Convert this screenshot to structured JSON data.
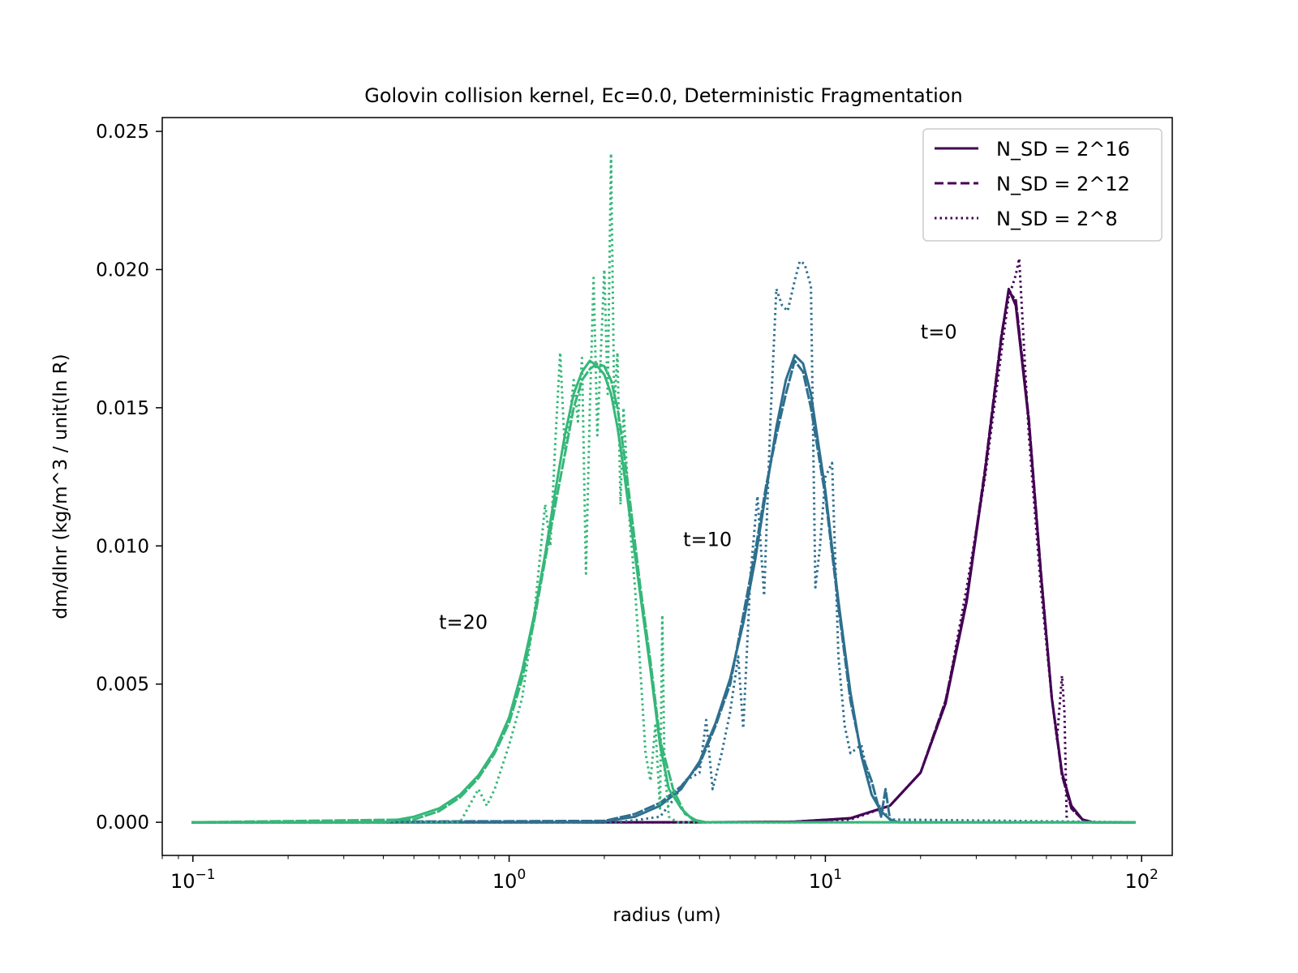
{
  "chart_data": {
    "type": "line",
    "title": "Golovin collision kernel, Ec=0.0, Deterministic Fragmentation",
    "xlabel": "radius (um)",
    "ylabel": "dm/dlnr (kg/m^3 / unit(ln R)",
    "xscale": "log",
    "xlim": [
      0.08,
      125
    ],
    "ylim": [
      -0.0012,
      0.0255
    ],
    "x_ticks": [
      {
        "value": 0.1,
        "base": "10",
        "exp": "−1"
      },
      {
        "value": 1,
        "base": "10",
        "exp": "0"
      },
      {
        "value": 10,
        "base": "10",
        "exp": "1"
      },
      {
        "value": 100,
        "base": "10",
        "exp": "2"
      }
    ],
    "y_ticks": [
      0.0,
      0.005,
      0.01,
      0.015,
      0.02,
      0.025
    ],
    "y_tick_labels": [
      "0.000",
      "0.005",
      "0.010",
      "0.015",
      "0.020",
      "0.025"
    ],
    "grid": false,
    "legend": {
      "position": "top-right",
      "entries": [
        {
          "label": "N_SD = 2^16",
          "dash": "solid"
        },
        {
          "label": "N_SD = 2^12",
          "dash": "dashed"
        },
        {
          "label": "N_SD = 2^8",
          "dash": "dotted"
        }
      ]
    },
    "legend_color": "#440154",
    "annotations": [
      {
        "text": "t=0",
        "x": 20.0,
        "y": 0.0175
      },
      {
        "text": "t=10",
        "x": 3.55,
        "y": 0.01
      },
      {
        "text": "t=20",
        "x": 0.6,
        "y": 0.007
      }
    ],
    "series": [
      {
        "time": "t=0",
        "variant": "N_SD = 2^16",
        "dash": "solid",
        "color": "#440154",
        "x": [
          0.1,
          4,
          8,
          12,
          16,
          20,
          24,
          28,
          32,
          36,
          38,
          40,
          44,
          48,
          52,
          56,
          60,
          65,
          70,
          95
        ],
        "y": [
          0.0,
          0.0,
          2e-05,
          0.00015,
          0.0006,
          0.0018,
          0.0043,
          0.008,
          0.0127,
          0.0175,
          0.0193,
          0.0187,
          0.0145,
          0.009,
          0.0045,
          0.0018,
          0.0006,
          0.0001,
          0.0,
          0.0
        ]
      },
      {
        "time": "t=0",
        "variant": "N_SD = 2^12",
        "dash": "dashed",
        "color": "#440154",
        "x": [
          0.1,
          4,
          8,
          12,
          16,
          20,
          24,
          28,
          32,
          36,
          38,
          40,
          44,
          48,
          52,
          56,
          60,
          65,
          70,
          95
        ],
        "y": [
          0.0,
          0.0,
          2e-05,
          0.00014,
          0.0006,
          0.0018,
          0.0044,
          0.0081,
          0.0128,
          0.0176,
          0.0192,
          0.0189,
          0.0146,
          0.0091,
          0.0045,
          0.0017,
          0.0005,
          0.0001,
          0.0,
          0.0
        ]
      },
      {
        "time": "t=0",
        "variant": "N_SD = 2^8",
        "dash": "dotted",
        "color": "#440154",
        "x": [
          0.1,
          8,
          12,
          16,
          20,
          24,
          26,
          28,
          32,
          36,
          38,
          40,
          41,
          44,
          48,
          52,
          54,
          56,
          57,
          58,
          60,
          95
        ],
        "y": [
          0.0,
          0.0,
          0.0001,
          0.0006,
          0.0018,
          0.0043,
          0.0065,
          0.0085,
          0.0125,
          0.017,
          0.019,
          0.0198,
          0.0204,
          0.014,
          0.0085,
          0.0045,
          0.003,
          0.0053,
          0.004,
          0.0,
          0.0,
          0.0
        ]
      },
      {
        "time": "t=10",
        "variant": "N_SD = 2^16",
        "dash": "solid",
        "color": "#2e6f8e",
        "x": [
          0.1,
          1.5,
          2.0,
          2.5,
          3.0,
          3.5,
          4.0,
          4.5,
          5.0,
          5.5,
          6.0,
          6.5,
          7.0,
          7.5,
          8.0,
          8.5,
          9.0,
          10.0,
          11.0,
          12.0,
          13.0,
          14.0,
          15.0,
          16.0,
          17.0,
          18.0,
          95
        ],
        "y": [
          0.0,
          0.0,
          3e-05,
          0.0002,
          0.0006,
          0.0012,
          0.0022,
          0.0036,
          0.0052,
          0.0072,
          0.0095,
          0.012,
          0.0143,
          0.016,
          0.0169,
          0.0166,
          0.0155,
          0.012,
          0.008,
          0.0047,
          0.0024,
          0.001,
          0.0004,
          0.0001,
          0.0,
          0.0,
          0.0
        ]
      },
      {
        "time": "t=10",
        "variant": "N_SD = 2^12",
        "dash": "dashed",
        "color": "#2e6f8e",
        "x": [
          0.1,
          2.0,
          2.5,
          3.0,
          3.5,
          4.0,
          4.5,
          5.0,
          5.5,
          6.0,
          6.5,
          7.0,
          7.5,
          8.0,
          8.5,
          9.0,
          10.0,
          11.0,
          12.0,
          13.0,
          14.0,
          15.0,
          15.5,
          16.0,
          17.0,
          95
        ],
        "y": [
          0.0,
          5e-05,
          0.0003,
          0.0007,
          0.0013,
          0.0021,
          0.0035,
          0.005,
          0.0075,
          0.0098,
          0.0122,
          0.014,
          0.0155,
          0.0167,
          0.0163,
          0.015,
          0.0118,
          0.0078,
          0.0044,
          0.0025,
          0.0015,
          0.0002,
          0.0012,
          0.0001,
          0.0,
          0.0
        ]
      },
      {
        "time": "t=10",
        "variant": "N_SD = 2^8",
        "dash": "dotted",
        "color": "#2e6f8e",
        "x": [
          0.1,
          2.2,
          2.6,
          3.0,
          3.3,
          3.6,
          4.0,
          4.2,
          4.4,
          4.7,
          5.0,
          5.3,
          5.5,
          5.8,
          6.1,
          6.4,
          6.7,
          7.0,
          7.3,
          7.6,
          8.0,
          8.3,
          8.6,
          9.0,
          9.3,
          9.6,
          10.0,
          10.5,
          11.0,
          11.5,
          12.0,
          13.0,
          14.0,
          15.0,
          16.0,
          95
        ],
        "y": [
          0.0,
          0.0,
          0.0001,
          0.0002,
          0.0008,
          0.0015,
          0.0018,
          0.0037,
          0.0012,
          0.0025,
          0.004,
          0.006,
          0.0034,
          0.009,
          0.0118,
          0.0082,
          0.0145,
          0.0193,
          0.0187,
          0.0185,
          0.0196,
          0.0203,
          0.0202,
          0.0194,
          0.0085,
          0.0099,
          0.0125,
          0.013,
          0.006,
          0.0035,
          0.0025,
          0.0028,
          0.001,
          0.0005,
          0.0001,
          0.0
        ]
      },
      {
        "time": "t=20",
        "variant": "N_SD = 2^16",
        "dash": "solid",
        "color": "#35b779",
        "x": [
          0.1,
          0.4,
          0.5,
          0.6,
          0.7,
          0.8,
          0.9,
          1.0,
          1.1,
          1.2,
          1.3,
          1.4,
          1.5,
          1.6,
          1.7,
          1.8,
          1.9,
          2.0,
          2.1,
          2.2,
          2.3,
          2.4,
          2.6,
          2.8,
          3.0,
          3.2,
          3.5,
          3.8,
          4.2,
          95
        ],
        "y": [
          0.0,
          0.0,
          0.0002,
          0.0005,
          0.001,
          0.0017,
          0.0026,
          0.0038,
          0.0055,
          0.0075,
          0.0097,
          0.012,
          0.014,
          0.0155,
          0.0163,
          0.0167,
          0.0165,
          0.0162,
          0.0155,
          0.0143,
          0.0128,
          0.0112,
          0.0082,
          0.0055,
          0.0028,
          0.0012,
          0.0005,
          0.0001,
          0.0,
          0.0
        ]
      },
      {
        "time": "t=20",
        "variant": "N_SD = 2^12",
        "dash": "dashed",
        "color": "#35b779",
        "x": [
          0.1,
          0.5,
          0.6,
          0.7,
          0.8,
          0.9,
          1.0,
          1.1,
          1.2,
          1.3,
          1.4,
          1.5,
          1.6,
          1.7,
          1.8,
          1.9,
          2.0,
          2.1,
          2.2,
          2.3,
          2.4,
          2.6,
          2.8,
          3.0,
          3.3,
          3.6,
          4.0,
          95
        ],
        "y": [
          0.0,
          0.0001,
          0.0004,
          0.0009,
          0.0016,
          0.0025,
          0.0036,
          0.0052,
          0.0073,
          0.0095,
          0.0115,
          0.0133,
          0.015,
          0.016,
          0.0164,
          0.0166,
          0.0165,
          0.016,
          0.015,
          0.0135,
          0.0118,
          0.0085,
          0.0058,
          0.003,
          0.0012,
          0.0003,
          0.0,
          0.0
        ]
      },
      {
        "time": "t=20",
        "variant": "N_SD = 2^8",
        "dash": "dotted",
        "color": "#35b779",
        "x": [
          0.1,
          0.7,
          0.8,
          0.85,
          0.9,
          1.0,
          1.1,
          1.2,
          1.3,
          1.35,
          1.4,
          1.45,
          1.5,
          1.55,
          1.6,
          1.65,
          1.7,
          1.75,
          1.8,
          1.85,
          1.9,
          1.95,
          2.0,
          2.05,
          2.1,
          2.15,
          2.2,
          2.25,
          2.3,
          2.4,
          2.5,
          2.6,
          2.7,
          2.8,
          2.9,
          3.0,
          3.05,
          3.1,
          3.2,
          3.4,
          95
        ],
        "y": [
          0.0,
          0.0,
          0.0012,
          0.0006,
          0.0012,
          0.0028,
          0.0045,
          0.0075,
          0.0115,
          0.01,
          0.0138,
          0.017,
          0.0135,
          0.0145,
          0.016,
          0.0145,
          0.0168,
          0.009,
          0.015,
          0.0197,
          0.014,
          0.017,
          0.02,
          0.0155,
          0.0242,
          0.015,
          0.017,
          0.0115,
          0.015,
          0.011,
          0.0085,
          0.0055,
          0.0025,
          0.0015,
          0.0035,
          0.0005,
          0.0075,
          0.002,
          0.0002,
          0.0,
          0.0
        ]
      }
    ]
  }
}
